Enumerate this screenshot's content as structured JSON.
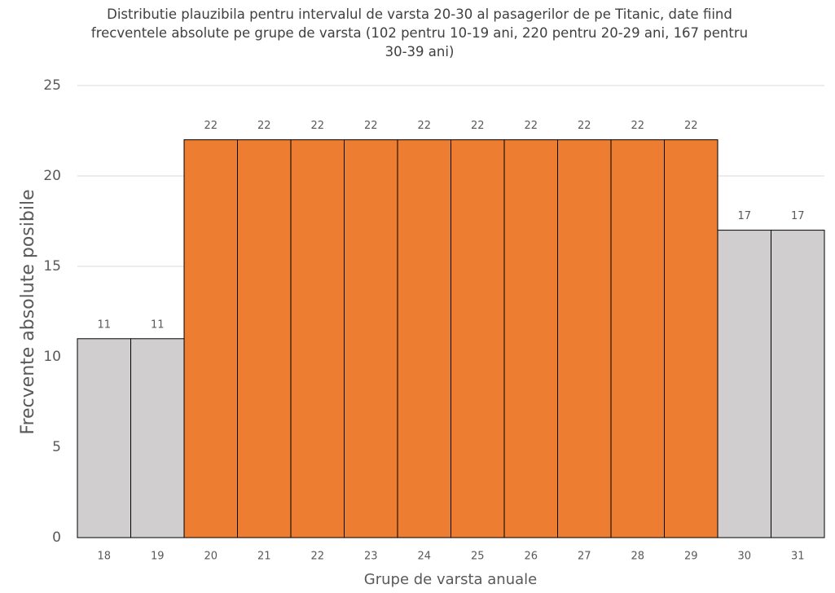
{
  "chart_data": {
    "type": "bar",
    "title": "Distributie plauzibila pentru intervalul de varsta 20-30 al pasagerilor de pe Titanic, date fiind frecventele absolute pe grupe de varsta (102 pentru 10-19 ani, 220 pentru 20-29 ani, 167 pentru 30-39 ani)",
    "x_label": "Grupe de varsta anuale",
    "y_label": "Frecvente absolute posibile",
    "categories": [
      "18",
      "19",
      "20",
      "21",
      "22",
      "23",
      "24",
      "25",
      "26",
      "27",
      "28",
      "29",
      "30",
      "31"
    ],
    "values": [
      11,
      11,
      22,
      22,
      22,
      22,
      22,
      22,
      22,
      22,
      22,
      22,
      17,
      17
    ],
    "colors": [
      "#d0cece",
      "#d0cece",
      "#ed7d31",
      "#ed7d31",
      "#ed7d31",
      "#ed7d31",
      "#ed7d31",
      "#ed7d31",
      "#ed7d31",
      "#ed7d31",
      "#ed7d31",
      "#ed7d31",
      "#d0cece",
      "#d0cece"
    ],
    "ylim": [
      0,
      25
    ],
    "yticks": [
      0,
      5,
      10,
      15,
      20,
      25
    ],
    "grid": true
  }
}
